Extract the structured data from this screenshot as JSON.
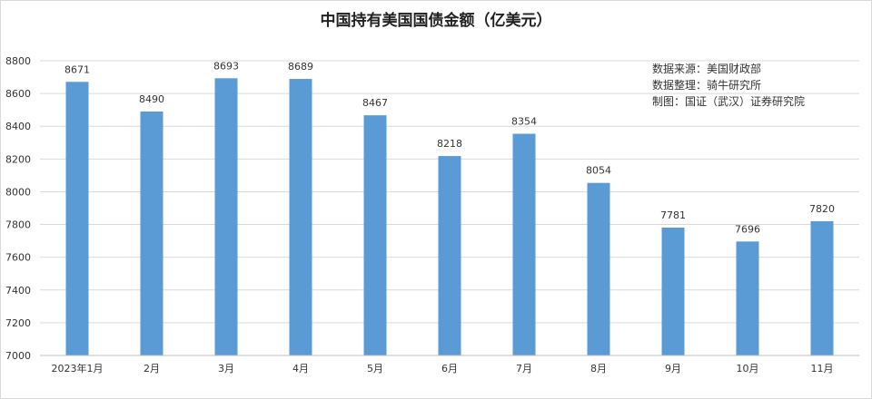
{
  "chart_data": {
    "type": "bar",
    "title": "中国持有美国国债金额（亿美元）",
    "xlabel": "",
    "ylabel": "",
    "categories": [
      "2023年1月",
      "2月",
      "3月",
      "4月",
      "5月",
      "6月",
      "7月",
      "8月",
      "9月",
      "10月",
      "11月"
    ],
    "values": [
      8671,
      8490,
      8693,
      8689,
      8467,
      8218,
      8354,
      8054,
      7781,
      7696,
      7820
    ],
    "ylim": [
      7000,
      8800
    ],
    "yticks": [
      7000,
      7200,
      7400,
      7600,
      7800,
      8000,
      8200,
      8400,
      8600,
      8800
    ],
    "grid": true,
    "bar_color": "#5b9bd5",
    "notes": [
      "数据来源：美国财政部",
      "数据整理：骑牛研究所",
      "制图：国证（武汉）证券研究院"
    ]
  }
}
